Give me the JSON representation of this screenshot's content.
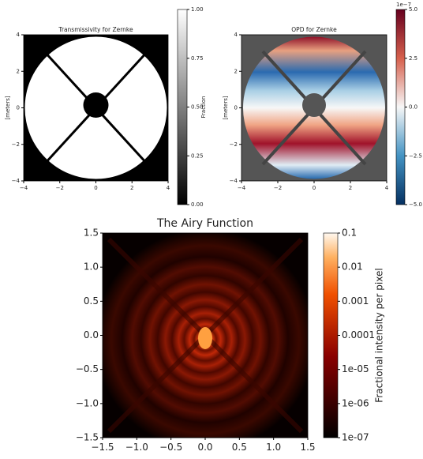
{
  "chart_data": [
    {
      "type": "image",
      "title": "Transmissivity for Zernke",
      "ylabel": "[meters]",
      "xlim": [
        -4,
        4
      ],
      "ylim": [
        -4,
        4
      ],
      "xticks": [
        {
          "value": -4,
          "label": "−4"
        },
        {
          "value": -2,
          "label": "−2"
        },
        0,
        2,
        4
      ],
      "yticks": [
        {
          "value": -4,
          "label": "−4"
        },
        {
          "value": -2,
          "label": "−2"
        },
        0,
        2,
        4
      ],
      "colorbar": {
        "label": "Fraction",
        "lim": [
          0,
          1
        ],
        "ticks": [
          {
            "value": 0,
            "label": "0.00"
          },
          {
            "value": 0.25,
            "label": "0.25"
          },
          {
            "value": 0.5,
            "label": "0.50"
          },
          {
            "value": 0.75,
            "label": "0.75"
          },
          {
            "value": 1,
            "label": "1.00"
          }
        ]
      }
    },
    {
      "type": "image",
      "title": "OPD for Zernke",
      "ylabel": "[meters]",
      "xlim": [
        -4,
        4
      ],
      "ylim": [
        -4,
        4
      ],
      "xticks": [
        {
          "value": -4,
          "label": "−4"
        },
        {
          "value": -2,
          "label": "−2"
        },
        0,
        2,
        4
      ],
      "yticks": [
        {
          "value": -4,
          "label": "−4"
        },
        {
          "value": -2,
          "label": "−2"
        },
        0,
        2,
        4
      ],
      "colorbar": {
        "offset_label": "1e−7",
        "lim": [
          -5,
          5
        ],
        "ticks": [
          {
            "value": -5,
            "label": "−5.0"
          },
          {
            "value": -2.5,
            "label": "−2.5"
          },
          {
            "value": 0,
            "label": "0.0"
          },
          2.5,
          {
            "value": 5,
            "label": "5.0"
          }
        ]
      }
    },
    {
      "type": "image",
      "title": "The Airy Function",
      "xlim": [
        -1.5,
        1.5
      ],
      "ylim": [
        -1.5,
        1.5
      ],
      "xticks": [
        {
          "value": -1.5,
          "label": "−1.5"
        },
        {
          "value": -1,
          "label": "−1.0"
        },
        {
          "value": -0.5,
          "label": "−0.5"
        },
        {
          "value": 0,
          "label": "0.0"
        },
        0.5,
        {
          "value": 1,
          "label": "1.0"
        },
        1.5
      ],
      "yticks": [
        {
          "value": -1.5,
          "label": "−1.5"
        },
        {
          "value": -1,
          "label": "−1.0"
        },
        {
          "value": -0.5,
          "label": "−0.5"
        },
        {
          "value": 0,
          "label": "0.0"
        },
        0.5,
        {
          "value": 1,
          "label": "1.0"
        },
        1.5
      ],
      "colorbar": {
        "label": "Fractional intensity per pixel",
        "log": true,
        "lim": [
          1e-07,
          0.1
        ],
        "ticks": [
          0.1,
          0.01,
          0.001,
          0.0001,
          {
            "value": 1e-05,
            "label": "1e-05"
          },
          {
            "value": 1e-06,
            "label": "1e-06"
          },
          {
            "value": 1e-07,
            "label": "1e-07"
          }
        ]
      }
    }
  ]
}
